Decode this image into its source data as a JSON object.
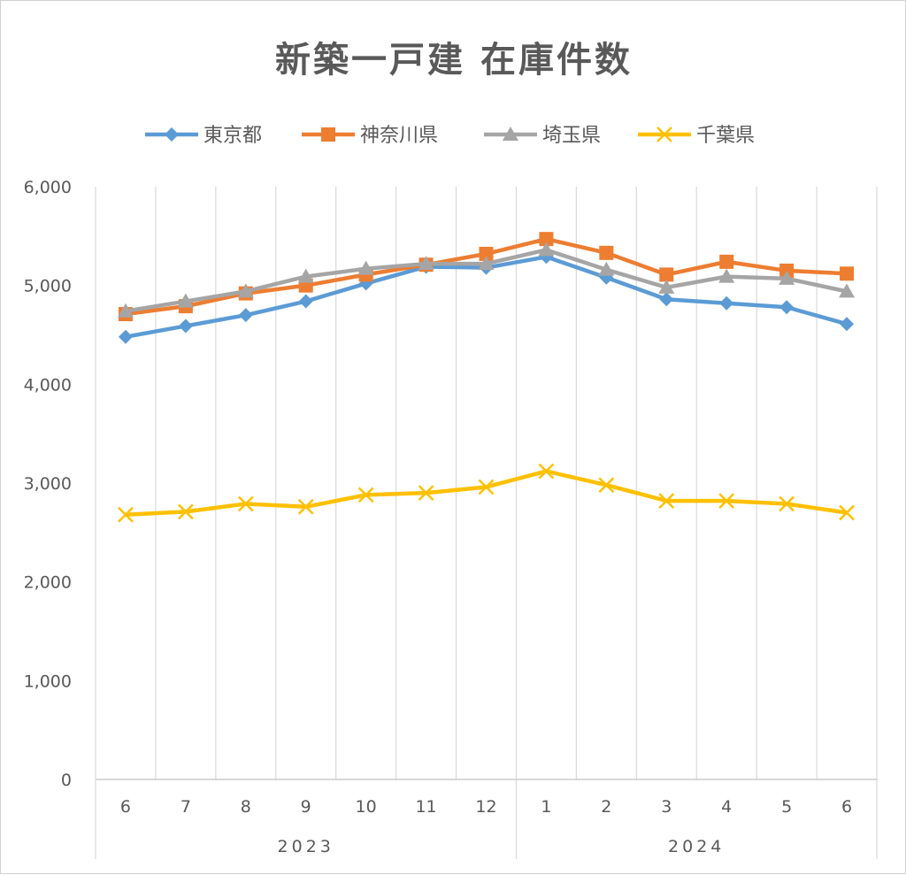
{
  "chart_data": {
    "type": "line",
    "title": "新築一戸建 在庫件数",
    "categories": [
      "6",
      "7",
      "8",
      "9",
      "10",
      "11",
      "12",
      "1",
      "2",
      "3",
      "4",
      "5",
      "6"
    ],
    "year_groups": [
      {
        "label": "2023",
        "start": 0,
        "end": 6
      },
      {
        "label": "2024",
        "start": 7,
        "end": 12
      }
    ],
    "ylim": [
      0,
      6000
    ],
    "yticks": [
      "0",
      "1,000",
      "2,000",
      "3,000",
      "4,000",
      "5,000",
      "6,000"
    ],
    "ytick_values": [
      0,
      1000,
      2000,
      3000,
      4000,
      5000,
      6000
    ],
    "grid": "vertical",
    "legend_position": "top",
    "series": [
      {
        "name": "東京都",
        "color": "#5B9BD5",
        "marker": "diamond",
        "values": [
          4480,
          4590,
          4700,
          4840,
          5020,
          5190,
          5180,
          5290,
          5080,
          4860,
          4820,
          4780,
          4610
        ]
      },
      {
        "name": "神奈川県",
        "color": "#ED7D31",
        "marker": "square",
        "values": [
          4710,
          4790,
          4920,
          5000,
          5110,
          5210,
          5320,
          5470,
          5330,
          5110,
          5240,
          5150,
          5120
        ]
      },
      {
        "name": "埼玉県",
        "color": "#A5A5A5",
        "marker": "triangle",
        "values": [
          4740,
          4840,
          4940,
          5090,
          5170,
          5220,
          5220,
          5360,
          5160,
          4980,
          5090,
          5070,
          4940
        ]
      },
      {
        "name": "千葉県",
        "color": "#FFC000",
        "marker": "x",
        "values": [
          2680,
          2710,
          2790,
          2760,
          2880,
          2900,
          2960,
          3120,
          2980,
          2820,
          2820,
          2790,
          2700
        ]
      }
    ]
  }
}
